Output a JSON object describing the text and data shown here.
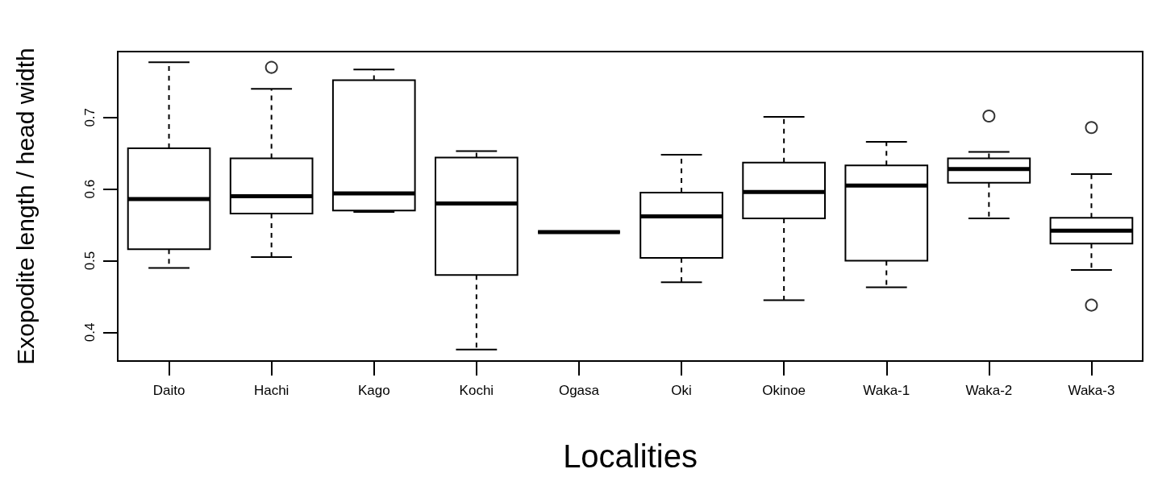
{
  "chart_data": {
    "type": "box",
    "xlabel": "Localities",
    "ylabel": "Exopodite length / head width",
    "color": "#000000",
    "grid": false,
    "categories": [
      "Daito",
      "Hachi",
      "Kago",
      "Kochi",
      "Ogasa",
      "Oki",
      "Okinoe",
      "Waka-1",
      "Waka-2",
      "Waka-3"
    ],
    "ylim": [
      0.36,
      0.792
    ],
    "yticks": [
      0.4,
      0.5,
      0.6,
      0.7
    ],
    "boxes": [
      {
        "low": 0.49,
        "q1": 0.516,
        "median": 0.586,
        "q3": 0.657,
        "high": 0.777
      },
      {
        "low": 0.505,
        "q1": 0.566,
        "median": 0.59,
        "q3": 0.643,
        "high": 0.74,
        "outliers": [
          0.77
        ]
      },
      {
        "low": 0.568,
        "q1": 0.57,
        "median": 0.594,
        "q3": 0.752,
        "high": 0.767
      },
      {
        "low": 0.376,
        "q1": 0.48,
        "median": 0.58,
        "q3": 0.644,
        "high": 0.653
      },
      {
        "low": 0.54,
        "q1": 0.54,
        "median": 0.54,
        "q3": 0.54,
        "high": 0.54
      },
      {
        "low": 0.47,
        "q1": 0.504,
        "median": 0.562,
        "q3": 0.595,
        "high": 0.648
      },
      {
        "low": 0.445,
        "q1": 0.559,
        "median": 0.596,
        "q3": 0.637,
        "high": 0.701
      },
      {
        "low": 0.463,
        "q1": 0.5,
        "median": 0.605,
        "q3": 0.633,
        "high": 0.666
      },
      {
        "low": 0.559,
        "q1": 0.609,
        "median": 0.628,
        "q3": 0.643,
        "high": 0.652,
        "outliers": [
          0.702
        ]
      },
      {
        "low": 0.487,
        "q1": 0.524,
        "median": 0.542,
        "q3": 0.56,
        "high": 0.621,
        "outliers": [
          0.686,
          0.438
        ]
      }
    ]
  }
}
